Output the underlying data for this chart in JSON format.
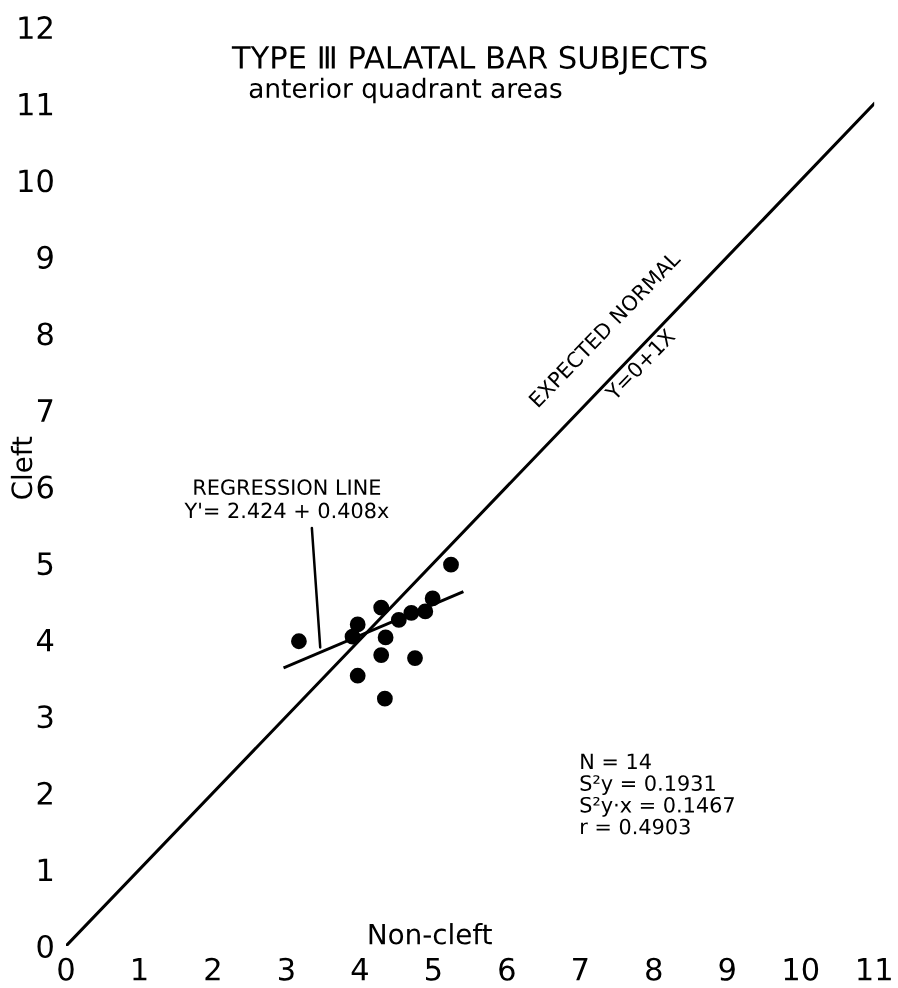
{
  "chart_data": {
    "type": "scatter",
    "title": "TYPE Ⅲ PALATAL BAR SUBJECTS",
    "subtitle": "anterior quadrant areas",
    "xlabel": "Non-cleft",
    "ylabel": "Cleft",
    "xlim": [
      0,
      11
    ],
    "ylim": [
      0,
      12
    ],
    "xticks": [
      0,
      1,
      2,
      3,
      4,
      5,
      6,
      7,
      8,
      9,
      10,
      11
    ],
    "yticks": [
      0,
      1,
      2,
      3,
      4,
      5,
      6,
      7,
      8,
      9,
      10,
      11,
      12
    ],
    "grid": false,
    "marker": "circle",
    "series": [
      {
        "color": "#000000",
        "x": [
          3.17,
          3.97,
          3.9,
          3.97,
          4.29,
          4.35,
          4.29,
          4.34,
          4.53,
          4.7,
          4.89,
          4.75,
          4.99,
          5.24
        ],
        "values": [
          3.98,
          4.2,
          4.04,
          3.53,
          4.42,
          4.03,
          3.8,
          3.23,
          4.26,
          4.35,
          4.37,
          3.76,
          4.54,
          4.98
        ]
      },
      {
        "type": "line",
        "color": "#000000",
        "line_style": "solid",
        "marker": "none",
        "x": [
          2.98,
          5.39
        ],
        "values": [
          3.64,
          4.62
        ]
      },
      {
        "type": "line",
        "color": "#000000",
        "line_style": "solid",
        "marker": "none",
        "x": [
          0,
          11
        ],
        "values": [
          0,
          11
        ]
      }
    ],
    "annotations": [
      {
        "text": "REGRESSION LINE\nY'= 2.424 + 0.408x",
        "x": 3.46,
        "y": 3.9
      },
      {
        "text": "EXPECTED NORMAL\nY=0+1X",
        "x": 7.7,
        "y": 7.7
      },
      "N = 14\nS²y = 0.1931\nS²y·x = 0.1467\nr = 0.4903"
    ]
  }
}
